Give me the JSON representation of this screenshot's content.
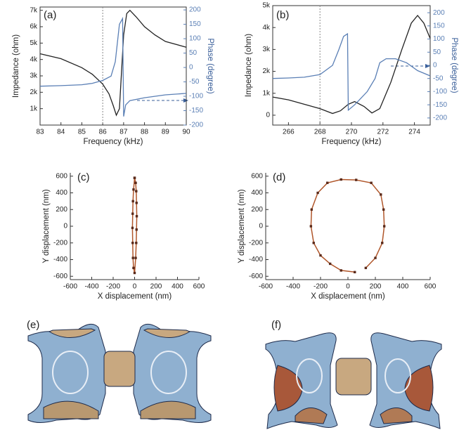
{
  "chart_data": [
    {
      "type": "line",
      "title": "(a)",
      "xlabel": "Frequency (kHz)",
      "ylabel": "Impedance (ohm)",
      "y2label": "Phase (degree)",
      "xlim": [
        83,
        90
      ],
      "xticks": [
        83,
        84,
        85,
        86,
        87,
        88,
        89,
        90
      ],
      "ylim": [
        0,
        7200
      ],
      "yticks": [
        {
          "value": 1000,
          "label": "1k"
        },
        {
          "value": 2000,
          "label": "2k"
        },
        {
          "value": 3000,
          "label": "3k"
        },
        {
          "value": 4000,
          "label": "4k"
        },
        {
          "value": 5000,
          "label": "5k"
        },
        {
          "value": 6000,
          "label": "6k"
        },
        {
          "value": 7000,
          "label": "7k"
        }
      ],
      "y2lim": [
        -200,
        210
      ],
      "y2ticks": [
        -200,
        -150,
        -100,
        -50,
        0,
        50,
        100,
        150,
        200
      ],
      "vline": 86,
      "box": true,
      "markers": false,
      "series": [
        {
          "color": "#222222",
          "x": [
            83,
            84,
            85,
            85.5,
            86,
            86.3,
            86.5,
            86.65,
            86.8,
            87.0,
            87.15,
            87.3,
            87.6,
            88,
            88.5,
            89,
            90
          ],
          "values": [
            4350,
            4050,
            3500,
            3100,
            2500,
            1900,
            1200,
            600,
            1000,
            5500,
            6800,
            7000,
            6600,
            6000,
            5500,
            5100,
            4750
          ]
        },
        {
          "color": "#5a7fb5",
          "axis": "y2",
          "x": [
            83,
            84,
            85,
            85.5,
            86,
            86.4,
            86.6,
            86.8,
            86.95,
            87.0,
            87.1,
            87.3,
            88,
            89,
            90
          ],
          "values": [
            -65,
            -63,
            -60,
            -55,
            -45,
            -30,
            20,
            150,
            170,
            -170,
            -130,
            -115,
            -105,
            -95,
            -90
          ]
        }
      ]
    },
    {
      "type": "line",
      "title": "(b)",
      "xlabel": "Frequency (kHz)",
      "ylabel": "Impedance (ohm)",
      "y2label": "Phase (degree)",
      "xlim": [
        265,
        275
      ],
      "xticks": [
        266,
        268,
        270,
        272,
        274
      ],
      "ylim": [
        -450,
        5000
      ],
      "yticks": [
        0,
        {
          "value": 1000,
          "label": "1k"
        },
        {
          "value": 2000,
          "label": "2k"
        },
        {
          "value": 3000,
          "label": "3k"
        },
        {
          "value": 4000,
          "label": "4k"
        },
        {
          "value": 5000,
          "label": "5k"
        }
      ],
      "y2lim": [
        -227,
        227
      ],
      "y2ticks": [
        -200,
        -150,
        -100,
        -50,
        0,
        50,
        100,
        150,
        200
      ],
      "vline": 268,
      "box": true,
      "markers": false,
      "series": [
        {
          "color": "#222222",
          "x": [
            265,
            266,
            267,
            268,
            268.8,
            269.3,
            269.8,
            270.2,
            270.8,
            271.3,
            271.8,
            272.5,
            273.2,
            273.8,
            274.2,
            274.6,
            275
          ],
          "values": [
            830,
            700,
            500,
            300,
            80,
            200,
            500,
            620,
            400,
            100,
            300,
            1500,
            3000,
            4200,
            4550,
            4200,
            3500
          ]
        },
        {
          "color": "#5a7fb5",
          "axis": "y2",
          "x": [
            265,
            266,
            267,
            268,
            268.8,
            269.2,
            269.5,
            269.75,
            269.8,
            270.2,
            271,
            271.5,
            271.8,
            272.2,
            272.8,
            273.5,
            274.2,
            275
          ],
          "values": [
            -50,
            -48,
            -45,
            -35,
            0,
            60,
            110,
            120,
            -170,
            -150,
            -100,
            -50,
            10,
            25,
            25,
            10,
            -20,
            -40
          ]
        }
      ]
    },
    {
      "type": "line",
      "title": "(c)",
      "xlabel": "X displacement (nm)",
      "ylabel": "Y displacement (nm)",
      "xlim": [
        -600,
        600
      ],
      "xticks": [
        -600,
        -400,
        -200,
        0,
        200,
        400,
        600
      ],
      "ylim": [
        -640,
        640
      ],
      "yticks": [
        -600,
        -400,
        -200,
        0,
        200,
        400,
        600
      ],
      "box": false,
      "markers": true,
      "series": [
        {
          "color": "#b0562a",
          "x": [
            0,
            10,
            15,
            18,
            20,
            18,
            15,
            10,
            0,
            -10,
            -15,
            -18,
            -20,
            -18,
            -15,
            -10,
            0
          ],
          "values": [
            580,
            520,
            420,
            280,
            120,
            -40,
            -200,
            -380,
            -560,
            -500,
            -380,
            -200,
            -20,
            150,
            300,
            440,
            580
          ]
        }
      ]
    },
    {
      "type": "line",
      "title": "(d)",
      "xlabel": "X displacement (nm)",
      "ylabel": "Y displacement (nm)",
      "xlim": [
        -600,
        600
      ],
      "xticks": [
        -600,
        -400,
        -200,
        0,
        200,
        400,
        600
      ],
      "ylim": [
        -640,
        640
      ],
      "yticks": [
        -600,
        -400,
        -200,
        0,
        200,
        400,
        600
      ],
      "box": false,
      "markers": true,
      "series": [
        {
          "color": "#b0562a",
          "x": [
            130,
            200,
            250,
            265,
            260,
            240,
            170,
            60,
            -50,
            -150,
            -220,
            -265,
            -270,
            -250,
            -200,
            -130,
            -50,
            50
          ],
          "values": [
            -500,
            -380,
            -200,
            0,
            200,
            380,
            520,
            555,
            560,
            520,
            400,
            200,
            0,
            -200,
            -350,
            -450,
            -530,
            -550
          ]
        }
      ]
    }
  ],
  "panels": [
    {
      "label": "(e)"
    },
    {
      "label": "(f)"
    }
  ]
}
